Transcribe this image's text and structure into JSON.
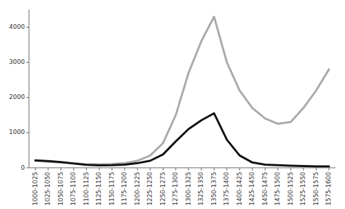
{
  "chart_data": {
    "type": "line",
    "categories": [
      "1000-1025",
      "1025-1050",
      "1050-1075",
      "1075-1100",
      "1100-1125",
      "1125-1150",
      "1150-1175",
      "1175-1200",
      "1200-1225",
      "1225-1250",
      "1250-1275",
      "1275-1300",
      "1300-1325",
      "1325-1350",
      "1350-1375",
      "1375-1400",
      "1400-1425",
      "1425-1450",
      "1450-1475",
      "1475-1500",
      "1500-1525",
      "1525-1550",
      "1550-1575",
      "1575-1600"
    ],
    "series": [
      {
        "color": "#aaaaaa",
        "values": [
          200,
          170,
          150,
          130,
          100,
          100,
          110,
          130,
          200,
          350,
          700,
          1500,
          2700,
          3600,
          4300,
          3000,
          2200,
          1700,
          1400,
          1250,
          1300,
          1700,
          2200,
          2800
        ]
      },
      {
        "color": "#111111",
        "values": [
          210,
          190,
          160,
          120,
          85,
          70,
          75,
          90,
          130,
          200,
          380,
          750,
          1100,
          1350,
          1550,
          800,
          350,
          150,
          90,
          75,
          60,
          50,
          40,
          40
        ]
      }
    ],
    "ylim": [
      0,
      4500
    ],
    "yticks": [
      0,
      1000,
      2000,
      3000,
      4000
    ],
    "grid": false
  }
}
